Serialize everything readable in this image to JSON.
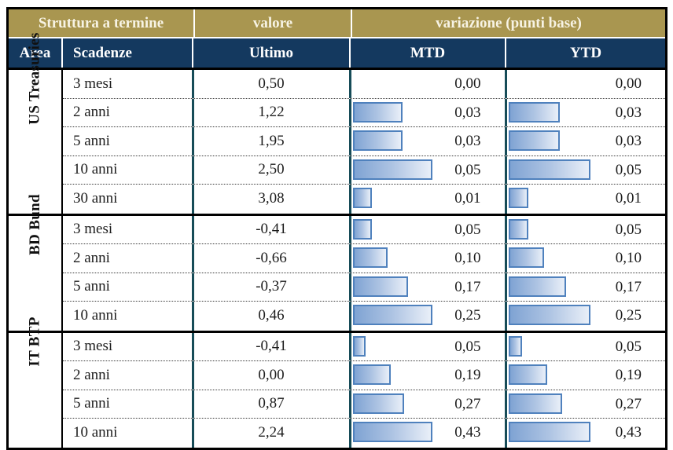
{
  "colors": {
    "header_gold": "#A99650",
    "header_navy": "#14395F",
    "teal_divider": "#174C58",
    "bar_border": "#4F81BD",
    "bar_fill_start": "#7FA3D3",
    "bar_fill_end": "#E9EFF8"
  },
  "table": {
    "header_top": {
      "struttura": "Struttura a termine",
      "valore": "valore",
      "variazione": "variazione (punti base)"
    },
    "header_cols": {
      "area": "Area",
      "scadenze": "Scadenze",
      "ultimo": "Ultimo",
      "mtd": "MTD",
      "ytd": "YTD"
    },
    "groups": [
      {
        "area": "US Treasuries",
        "rows": [
          {
            "scadenza": "3 mesi",
            "ultimo": "0,50",
            "mtd": "0,00",
            "ytd": "0,00",
            "mtd_val": 0.0,
            "ytd_val": 0.0
          },
          {
            "scadenza": "2 anni",
            "ultimo": "1,22",
            "mtd": "0,03",
            "ytd": "0,03",
            "mtd_val": 0.03,
            "ytd_val": 0.03
          },
          {
            "scadenza": "5 anni",
            "ultimo": "1,95",
            "mtd": "0,03",
            "ytd": "0,03",
            "mtd_val": 0.03,
            "ytd_val": 0.03
          },
          {
            "scadenza": "10 anni",
            "ultimo": "2,50",
            "mtd": "0,05",
            "ytd": "0,05",
            "mtd_val": 0.05,
            "ytd_val": 0.05
          },
          {
            "scadenza": "30 anni",
            "ultimo": "3,08",
            "mtd": "0,01",
            "ytd": "0,01",
            "mtd_val": 0.01,
            "ytd_val": 0.01
          }
        ]
      },
      {
        "area": "BD Bund",
        "rows": [
          {
            "scadenza": "3 mesi",
            "ultimo": "-0,41",
            "mtd": "0,05",
            "ytd": "0,05",
            "mtd_val": 0.05,
            "ytd_val": 0.05
          },
          {
            "scadenza": "2 anni",
            "ultimo": "-0,66",
            "mtd": "0,10",
            "ytd": "0,10",
            "mtd_val": 0.1,
            "ytd_val": 0.1
          },
          {
            "scadenza": "5 anni",
            "ultimo": "-0,37",
            "mtd": "0,17",
            "ytd": "0,17",
            "mtd_val": 0.17,
            "ytd_val": 0.17
          },
          {
            "scadenza": "10 anni",
            "ultimo": "0,46",
            "mtd": "0,25",
            "ytd": "0,25",
            "mtd_val": 0.25,
            "ytd_val": 0.25
          }
        ]
      },
      {
        "area": "IT BTP",
        "rows": [
          {
            "scadenza": "3 mesi",
            "ultimo": "-0,41",
            "mtd": "0,05",
            "ytd": "0,05",
            "mtd_val": 0.05,
            "ytd_val": 0.05
          },
          {
            "scadenza": "2 anni",
            "ultimo": "0,00",
            "mtd": "0,19",
            "ytd": "0,19",
            "mtd_val": 0.19,
            "ytd_val": 0.19
          },
          {
            "scadenza": "5 anni",
            "ultimo": "0,87",
            "mtd": "0,27",
            "ytd": "0,27",
            "mtd_val": 0.27,
            "ytd_val": 0.27
          },
          {
            "scadenza": "10 anni",
            "ultimo": "2,24",
            "mtd": "0,43",
            "ytd": "0,43",
            "mtd_val": 0.43,
            "ytd_val": 0.43
          }
        ]
      }
    ]
  },
  "chart_data": {
    "type": "table",
    "title": "Struttura a termine",
    "columns": [
      "Area",
      "Scadenze",
      "Ultimo (valore)",
      "MTD variazione (punti base)",
      "YTD variazione (punti base)"
    ],
    "rows": [
      [
        "US Treasuries",
        "3 mesi",
        0.5,
        0.0,
        0.0
      ],
      [
        "US Treasuries",
        "2 anni",
        1.22,
        0.03,
        0.03
      ],
      [
        "US Treasuries",
        "5 anni",
        1.95,
        0.03,
        0.03
      ],
      [
        "US Treasuries",
        "10 anni",
        2.5,
        0.05,
        0.05
      ],
      [
        "US Treasuries",
        "30 anni",
        3.08,
        0.01,
        0.01
      ],
      [
        "BD Bund",
        "3 mesi",
        -0.41,
        0.05,
        0.05
      ],
      [
        "BD Bund",
        "2 anni",
        -0.66,
        0.1,
        0.1
      ],
      [
        "BD Bund",
        "5 anni",
        -0.37,
        0.17,
        0.17
      ],
      [
        "BD Bund",
        "10 anni",
        0.46,
        0.25,
        0.25
      ],
      [
        "IT BTP",
        "3 mesi",
        -0.41,
        0.05,
        0.05
      ],
      [
        "IT BTP",
        "2 anni",
        0.0,
        0.19,
        0.19
      ],
      [
        "IT BTP",
        "5 anni",
        0.87,
        0.27,
        0.27
      ],
      [
        "IT BTP",
        "10 anni",
        2.24,
        0.43,
        0.43
      ]
    ],
    "databars": {
      "columns": [
        "MTD",
        "YTD"
      ],
      "style": "horizontal blue gradient data bars, scaled per area-group (group maximum value = longest bar)",
      "group_max": {
        "US Treasuries": 0.05,
        "BD Bund": 0.25,
        "IT BTP": 0.43
      }
    },
    "legend_position": "none",
    "grid": "table borders: solid black group separators, dotted row separators, teal column dividers"
  }
}
